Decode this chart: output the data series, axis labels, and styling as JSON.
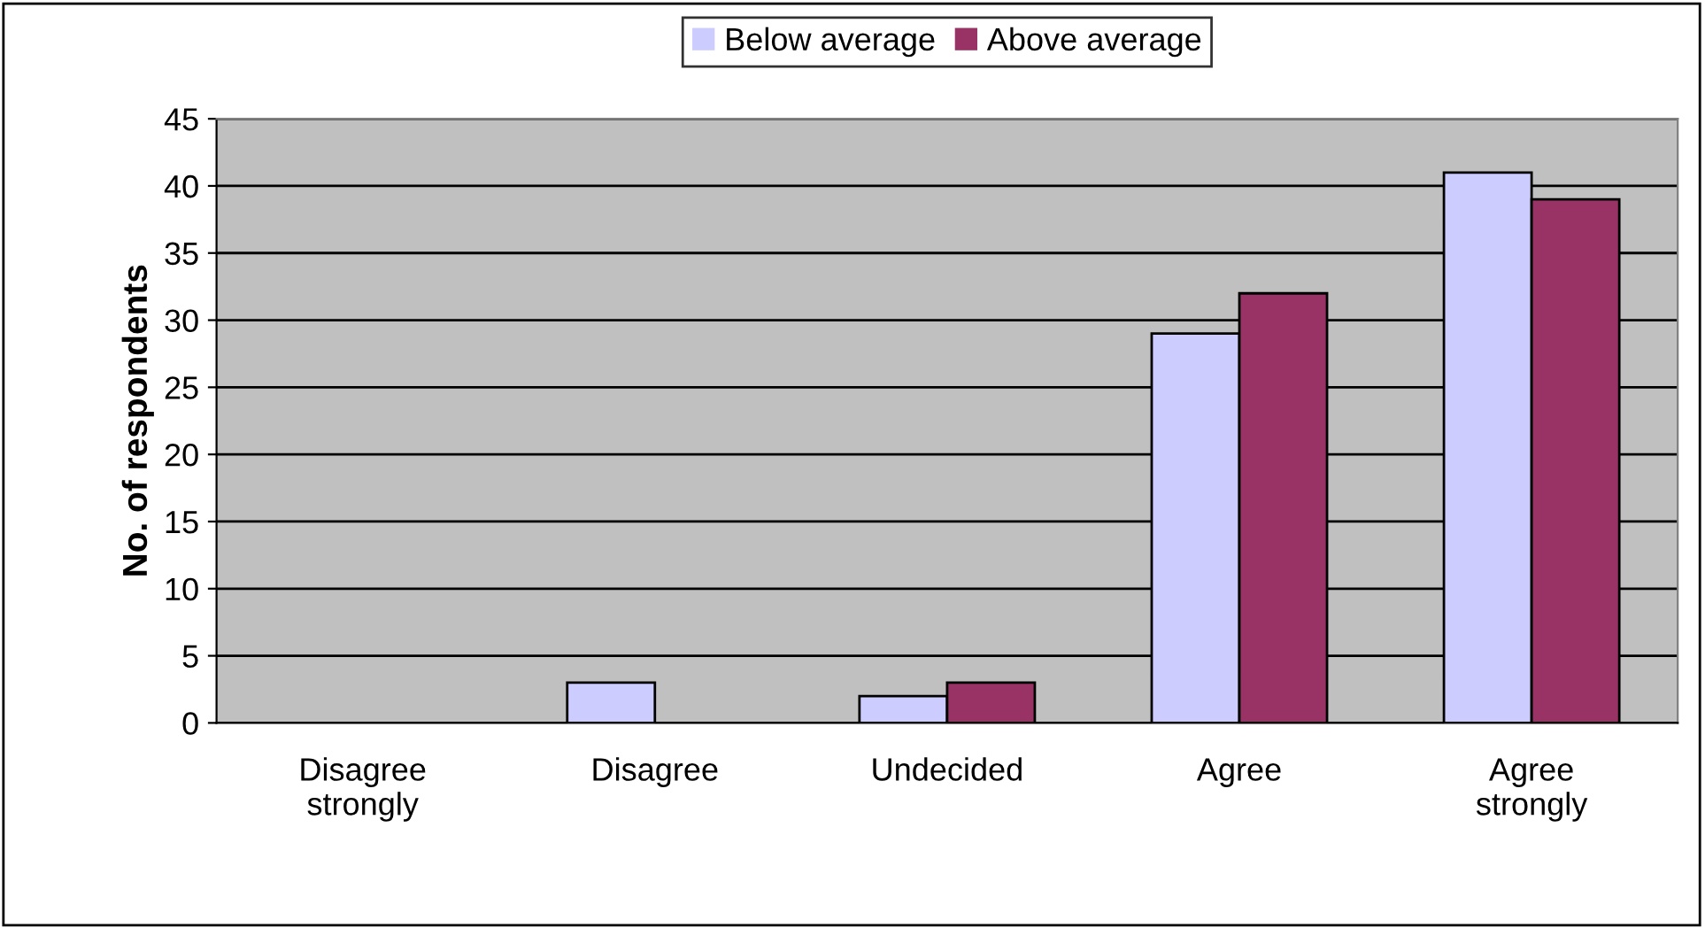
{
  "chart_data": {
    "type": "bar",
    "ylabel": "No. of respondents",
    "categories": [
      "Disagree\nstrongly",
      "Disagree",
      "Undecided",
      "Agree",
      "Agree\nstrongly"
    ],
    "series": [
      {
        "name": "Below average",
        "color": "#ccccff",
        "values": [
          0,
          3,
          2,
          29,
          41
        ]
      },
      {
        "name": "Above average",
        "color": "#993366",
        "values": [
          0,
          0,
          3,
          32,
          39
        ]
      }
    ],
    "ylim": [
      0,
      45
    ],
    "yticks": [
      0,
      5,
      10,
      15,
      20,
      25,
      30,
      35,
      40,
      45
    ],
    "grid": "y",
    "legend": "top"
  }
}
